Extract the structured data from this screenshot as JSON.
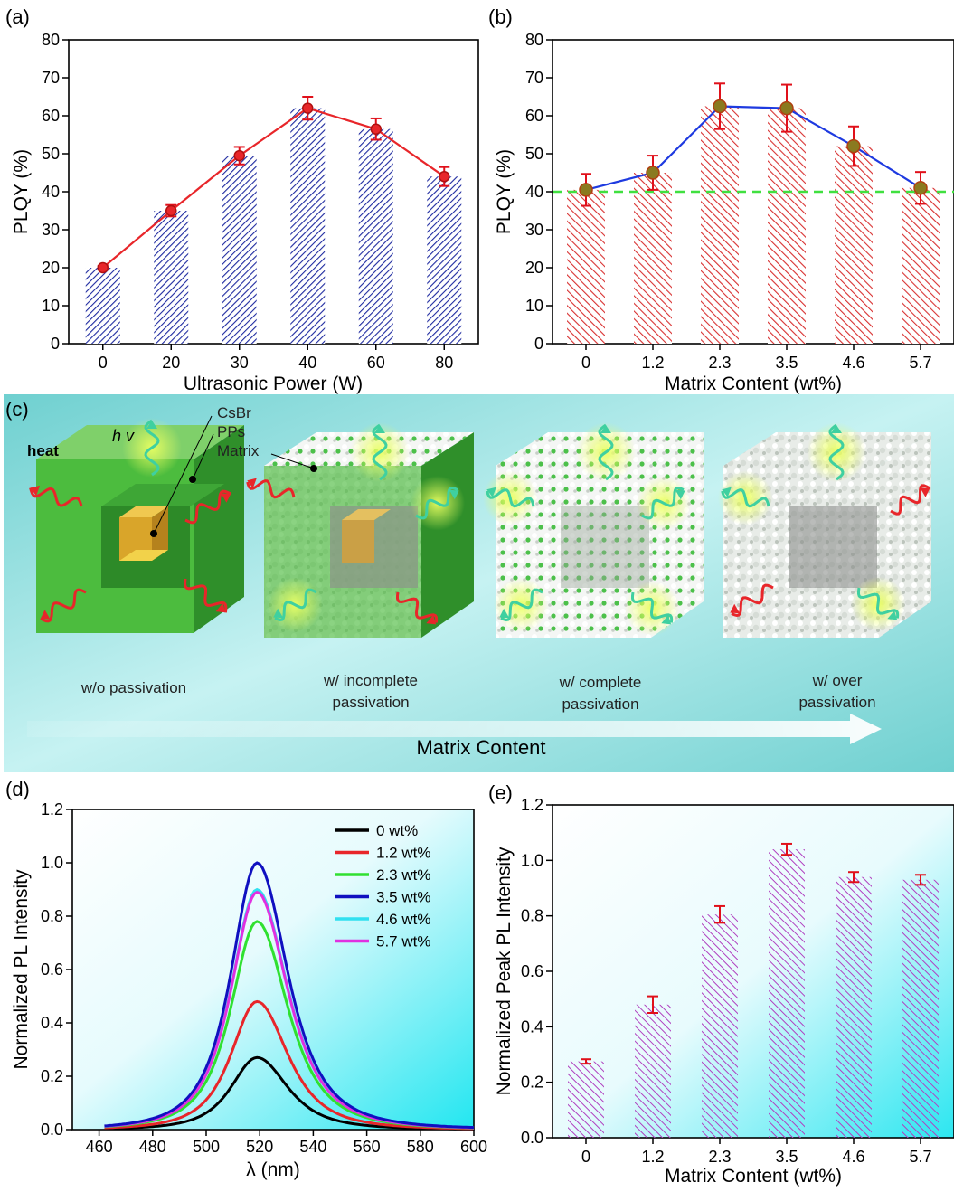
{
  "colors": {
    "bar_a": "#1e2aa0",
    "bar_b": "#d83030",
    "line_a": "#e8262a",
    "line_b": "#1e3ae0",
    "dash_b": "#40e040",
    "bar_e": "#b040c0",
    "err": "#e0101a",
    "matrix_green": "#3fb23c",
    "core_gold": "#e8b830",
    "heat": "#e8262a",
    "emission": "#3fd0a0",
    "panel_c_bg": "#7ed6d6"
  },
  "chart_data": [
    {
      "panel": "(a)",
      "type": "bar",
      "categories": [
        "0",
        "20",
        "30",
        "40",
        "60",
        "80"
      ],
      "values": [
        20,
        35,
        49.5,
        62,
        56.5,
        44
      ],
      "line": {
        "values": [
          20,
          35,
          49.5,
          62,
          56.5,
          44
        ],
        "errors": [
          0.5,
          1.5,
          2.3,
          3,
          2.8,
          2.5
        ]
      },
      "xlabel": "Ultrasonic Power (W)",
      "ylabel": "PLQY (%)",
      "ylim": [
        0,
        80
      ],
      "yticks": [
        "0",
        "10",
        "20",
        "30",
        "40",
        "50",
        "60",
        "70",
        "80"
      ],
      "grid": false
    },
    {
      "panel": "(b)",
      "type": "bar",
      "categories": [
        "0",
        "1.2",
        "2.3",
        "3.5",
        "4.6",
        "5.7"
      ],
      "values": [
        40.5,
        45,
        62.5,
        62,
        52,
        41
      ],
      "line": {
        "values": [
          40.5,
          45,
          62.5,
          62,
          52,
          41
        ],
        "errors": [
          4.2,
          4.5,
          6,
          6.2,
          5.2,
          4.2
        ]
      },
      "reference_line": 40,
      "xlabel": "Matrix Content (wt%)",
      "ylabel": "PLQY (%)",
      "ylim": [
        0,
        80
      ],
      "yticks": [
        "0",
        "10",
        "20",
        "30",
        "40",
        "50",
        "60",
        "70",
        "80"
      ],
      "grid": false
    },
    {
      "panel": "(d)",
      "type": "line",
      "xlabel": "λ (nm)",
      "ylabel": "Normalized PL Intensity",
      "xlim": [
        450,
        600
      ],
      "ylim": [
        0,
        1.2
      ],
      "xticks": [
        "460",
        "480",
        "500",
        "520",
        "540",
        "560",
        "580",
        "600"
      ],
      "yticks": [
        "0.0",
        "0.2",
        "0.4",
        "0.6",
        "0.8",
        "1.0",
        "1.2"
      ],
      "peak_nm": 519,
      "legend_position": "top-right",
      "series": [
        {
          "name": "0 wt%",
          "color": "#000000",
          "peak": 0.27
        },
        {
          "name": "1.2 wt%",
          "color": "#e8262a",
          "peak": 0.48
        },
        {
          "name": "2.3 wt%",
          "color": "#30e030",
          "peak": 0.78
        },
        {
          "name": "3.5 wt%",
          "color": "#1010c0",
          "peak": 1.0
        },
        {
          "name": "4.6 wt%",
          "color": "#30e0f0",
          "peak": 0.9
        },
        {
          "name": "5.7 wt%",
          "color": "#e030e0",
          "peak": 0.89
        }
      ]
    },
    {
      "panel": "(e)",
      "type": "bar",
      "categories": [
        "0",
        "1.2",
        "2.3",
        "3.5",
        "4.6",
        "5.7"
      ],
      "values": [
        0.275,
        0.48,
        0.805,
        1.04,
        0.94,
        0.93
      ],
      "errors": [
        0.008,
        0.03,
        0.03,
        0.02,
        0.018,
        0.018
      ],
      "xlabel": "Matrix Content (wt%)",
      "ylabel": "Normalized Peak PL Intensity",
      "ylim": [
        0,
        1.2
      ],
      "yticks": [
        "0.0",
        "0.2",
        "0.4",
        "0.6",
        "0.8",
        "1.0",
        "1.2"
      ],
      "grid": false
    }
  ],
  "labels": {
    "a": "(a)",
    "b": "(b)",
    "c": "(c)",
    "d": "(d)",
    "e": "(e)",
    "hv": "h v",
    "heat": "heat",
    "csbr": "CsBr",
    "pps": "PPs",
    "matrix": "Matrix",
    "cube1": "w/o passivation",
    "cube2_l1": "w/ incomplete",
    "cube2_l2": "passivation",
    "cube3_l1": "w/ complete",
    "cube3_l2": "passivation",
    "cube4_l1": "w/ over",
    "cube4_l2": "passivation",
    "arrow": "Matrix Content"
  }
}
